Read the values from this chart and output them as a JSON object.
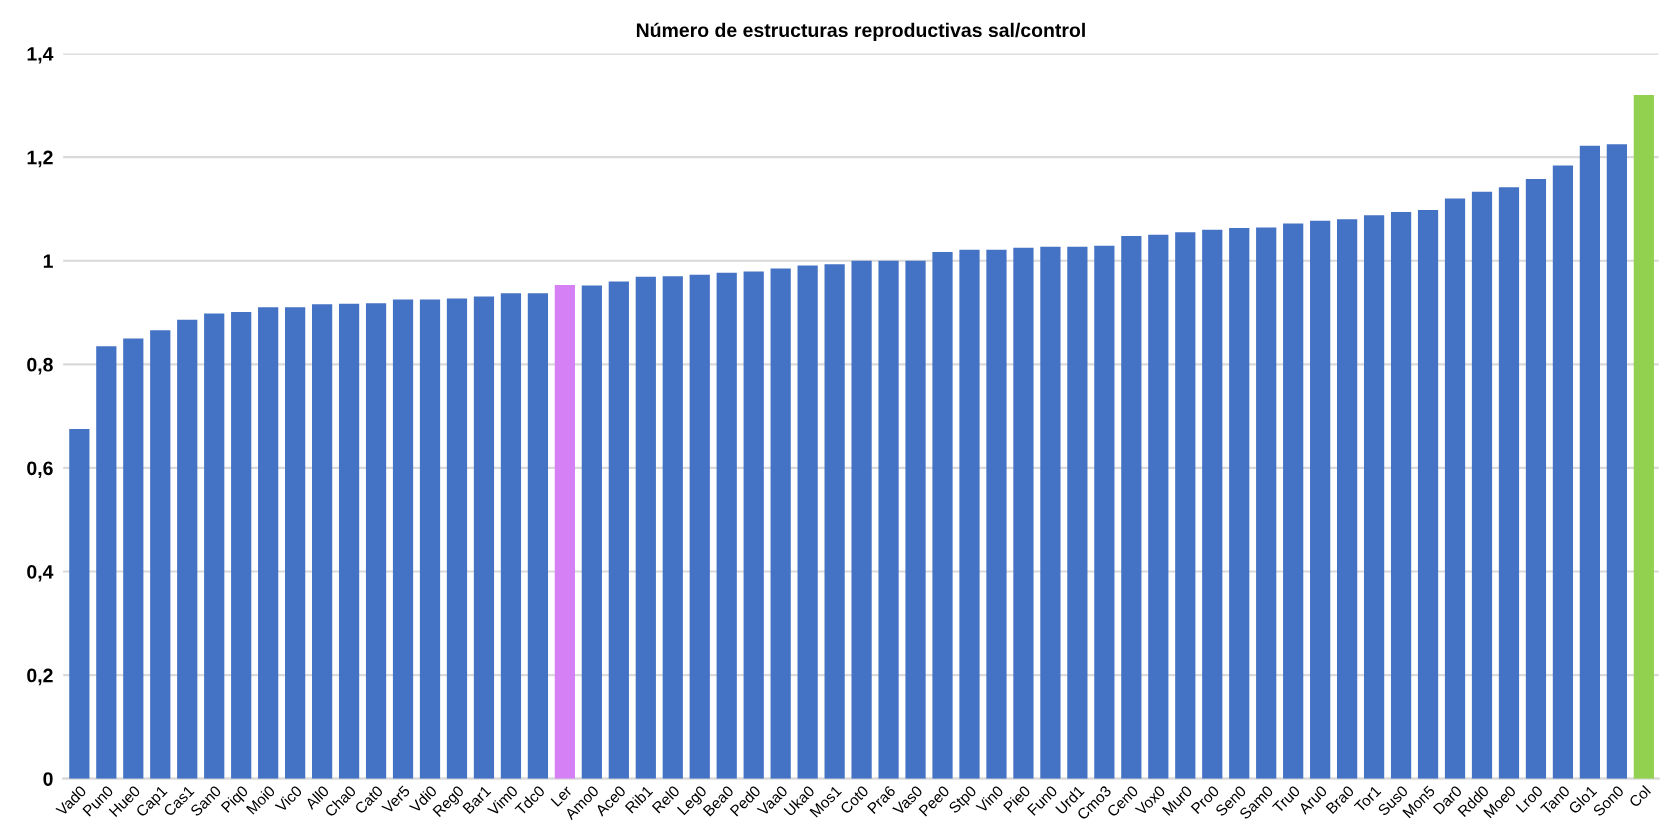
{
  "chart_data": {
    "type": "bar",
    "title": "Número de estructuras reproductivas sal/control",
    "categories": [
      "Vad0",
      "Pun0",
      "Hue0",
      "Cap1",
      "Cas1",
      "San0",
      "Piq0",
      "Moi0",
      "Vic0",
      "All0",
      "Cha0",
      "Cat0",
      "Ver5",
      "Vdi0",
      "Reg0",
      "Bar1",
      "Vim0",
      "Tdc0",
      "Ler",
      "Amo0",
      "Ace0",
      "Rib1",
      "Rel0",
      "Leg0",
      "Bea0",
      "Ped0",
      "Vaa0",
      "Uka0",
      "Mos1",
      "Cot0",
      "Pra6",
      "Vas0",
      "Pee0",
      "Stp0",
      "Vin0",
      "Pie0",
      "Fun0",
      "Urd1",
      "Cmo3",
      "Cen0",
      "Vox0",
      "Mur0",
      "Pro0",
      "Sen0",
      "Sam0",
      "Tru0",
      "Aru0",
      "Bra0",
      "Tor1",
      "Sus0",
      "Mon5",
      "Dar0",
      "Rdd0",
      "Moe0",
      "Lro0",
      "Tan0",
      "Glo1",
      "Son0",
      "Col"
    ],
    "values": [
      0.675,
      0.835,
      0.85,
      0.866,
      0.886,
      0.898,
      0.901,
      0.91,
      0.91,
      0.916,
      0.917,
      0.918,
      0.925,
      0.925,
      0.927,
      0.931,
      0.937,
      0.937,
      0.953,
      0.952,
      0.96,
      0.969,
      0.97,
      0.973,
      0.977,
      0.979,
      0.985,
      0.991,
      0.993,
      1.0,
      1.0,
      1.0,
      1.017,
      1.021,
      1.021,
      1.025,
      1.027,
      1.027,
      1.029,
      1.048,
      1.05,
      1.055,
      1.06,
      1.063,
      1.064,
      1.072,
      1.077,
      1.08,
      1.088,
      1.094,
      1.098,
      1.12,
      1.133,
      1.142,
      1.158,
      1.184,
      1.222,
      1.225,
      1.32
    ],
    "colors": [
      "#4472c4",
      "#4472c4",
      "#4472c4",
      "#4472c4",
      "#4472c4",
      "#4472c4",
      "#4472c4",
      "#4472c4",
      "#4472c4",
      "#4472c4",
      "#4472c4",
      "#4472c4",
      "#4472c4",
      "#4472c4",
      "#4472c4",
      "#4472c4",
      "#4472c4",
      "#4472c4",
      "#d580f5",
      "#4472c4",
      "#4472c4",
      "#4472c4",
      "#4472c4",
      "#4472c4",
      "#4472c4",
      "#4472c4",
      "#4472c4",
      "#4472c4",
      "#4472c4",
      "#4472c4",
      "#4472c4",
      "#4472c4",
      "#4472c4",
      "#4472c4",
      "#4472c4",
      "#4472c4",
      "#4472c4",
      "#4472c4",
      "#4472c4",
      "#4472c4",
      "#4472c4",
      "#4472c4",
      "#4472c4",
      "#4472c4",
      "#4472c4",
      "#4472c4",
      "#4472c4",
      "#4472c4",
      "#4472c4",
      "#4472c4",
      "#4472c4",
      "#4472c4",
      "#4472c4",
      "#4472c4",
      "#4472c4",
      "#4472c4",
      "#4472c4",
      "#4472c4",
      "#92d050"
    ],
    "ylim": [
      0,
      1.4
    ],
    "yticks": [
      {
        "value": 0,
        "label": "0"
      },
      {
        "value": 0.2,
        "label": "0,2"
      },
      {
        "value": 0.4,
        "label": "0,4"
      },
      {
        "value": 0.6,
        "label": "0,6"
      },
      {
        "value": 0.8,
        "label": "0,8"
      },
      {
        "value": 1,
        "label": "1"
      },
      {
        "value": 1.2,
        "label": "1,2"
      },
      {
        "value": 1.4,
        "label": "1,4"
      }
    ],
    "grid": "y",
    "legend": false
  }
}
